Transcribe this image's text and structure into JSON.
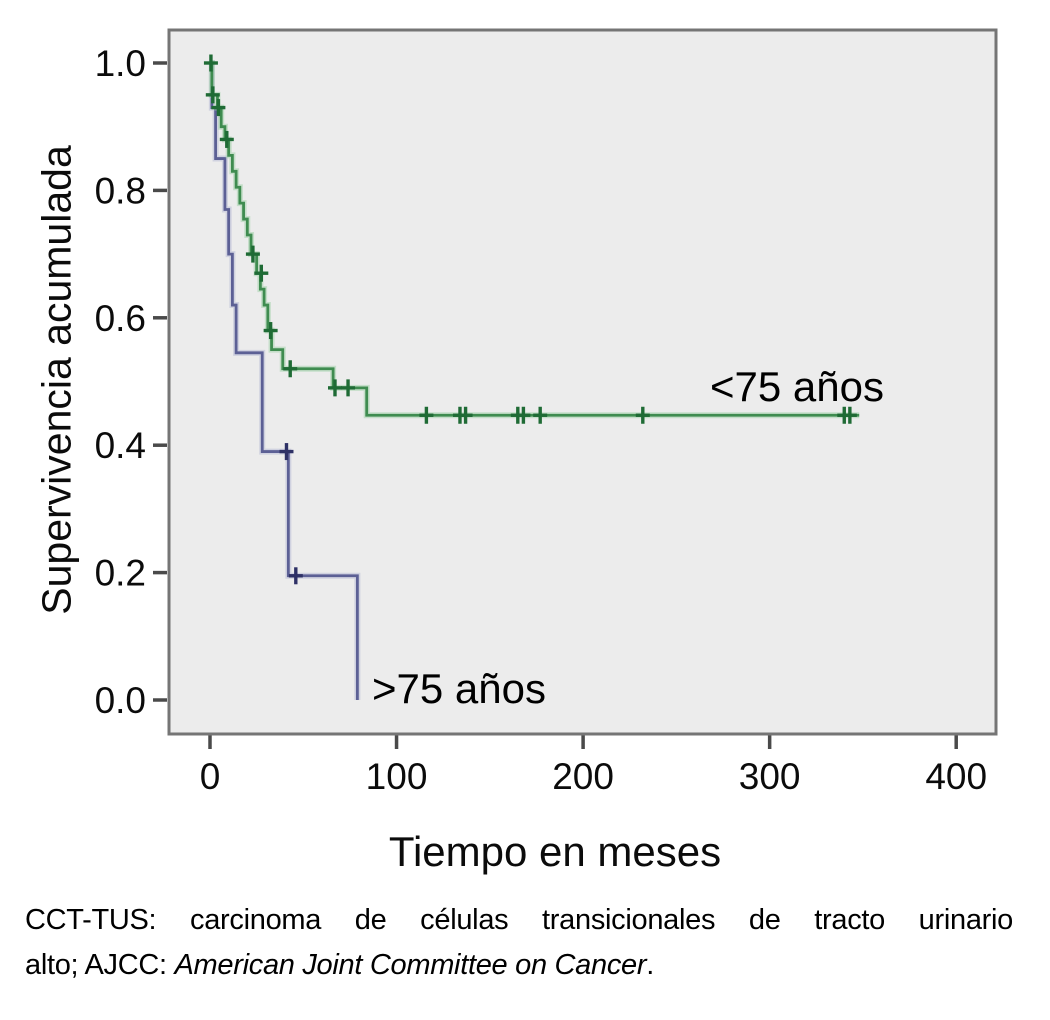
{
  "chart_data": {
    "type": "line",
    "subtype": "kaplan-meier-step",
    "title": "",
    "xlabel": "Tiempo en meses",
    "ylabel": "Supervivencia acumulada",
    "grid": false,
    "legend": "inline-labels",
    "xlim": [
      -22,
      421
    ],
    "ylim": [
      -0.053,
      1.052
    ],
    "x_ticks": [
      0,
      100,
      200,
      300,
      400
    ],
    "y_ticks": [
      {
        "value": 0.0,
        "label": "0.0"
      },
      {
        "value": 0.2,
        "label": "0.2"
      },
      {
        "value": 0.4,
        "label": "0.4"
      },
      {
        "value": 0.6,
        "label": "0.6"
      },
      {
        "value": 0.8,
        "label": "0.8"
      },
      {
        "value": 1.0,
        "label": "1.0"
      }
    ],
    "plot_background_color": "#ececec",
    "border_color": "#757575",
    "tick_color": "#4a4a4a",
    "series": [
      {
        "name": "<75 años",
        "color": "#3f8c50",
        "halo": "#9ecfa6",
        "censor_color": "#1f6b35",
        "steps": [
          [
            0,
            1.0
          ],
          [
            1,
            0.95
          ],
          [
            4,
            0.93
          ],
          [
            6,
            0.9
          ],
          [
            8,
            0.88
          ],
          [
            10,
            0.855
          ],
          [
            12,
            0.83
          ],
          [
            14,
            0.805
          ],
          [
            16,
            0.78
          ],
          [
            18,
            0.755
          ],
          [
            20,
            0.73
          ],
          [
            22,
            0.7
          ],
          [
            25,
            0.67
          ],
          [
            27,
            0.645
          ],
          [
            29,
            0.62
          ],
          [
            31,
            0.58
          ],
          [
            33,
            0.55
          ],
          [
            39,
            0.52
          ],
          [
            66,
            0.49
          ],
          [
            84,
            0.447
          ]
        ],
        "end_time": 348,
        "censors": [
          [
            0.5,
            1.0
          ],
          [
            1.5,
            0.95
          ],
          [
            4.5,
            0.93
          ],
          [
            9,
            0.88
          ],
          [
            23,
            0.7
          ],
          [
            27.5,
            0.67
          ],
          [
            32.5,
            0.58
          ],
          [
            43,
            0.52
          ],
          [
            67,
            0.49
          ],
          [
            74,
            0.49
          ],
          [
            116,
            0.447
          ],
          [
            134,
            0.447
          ],
          [
            137,
            0.447
          ],
          [
            165,
            0.447
          ],
          [
            168,
            0.447
          ],
          [
            177,
            0.447
          ],
          [
            232,
            0.447
          ],
          [
            340,
            0.447
          ],
          [
            343,
            0.447
          ]
        ]
      },
      {
        "name": ">75 años",
        "color": "#5c6095",
        "halo": "#b4b7d4",
        "censor_color": "#2e3166",
        "steps": [
          [
            0,
            1.0
          ],
          [
            1,
            0.93
          ],
          [
            3,
            0.85
          ],
          [
            8,
            0.77
          ],
          [
            10,
            0.7
          ],
          [
            12,
            0.62
          ],
          [
            14,
            0.545
          ],
          [
            28,
            0.39
          ],
          [
            42,
            0.195
          ],
          [
            79,
            0.0
          ]
        ],
        "end_time": 79,
        "censors": [
          [
            41,
            0.39
          ],
          [
            46,
            0.195
          ]
        ]
      }
    ]
  },
  "caption": {
    "line1": "CCT-TUS: carcinoma de células transicionales de tracto urinario",
    "line2_prefix": "alto; AJCC: ",
    "line2_italic": "American Joint Committee on Cancer",
    "line2_suffix": "."
  }
}
